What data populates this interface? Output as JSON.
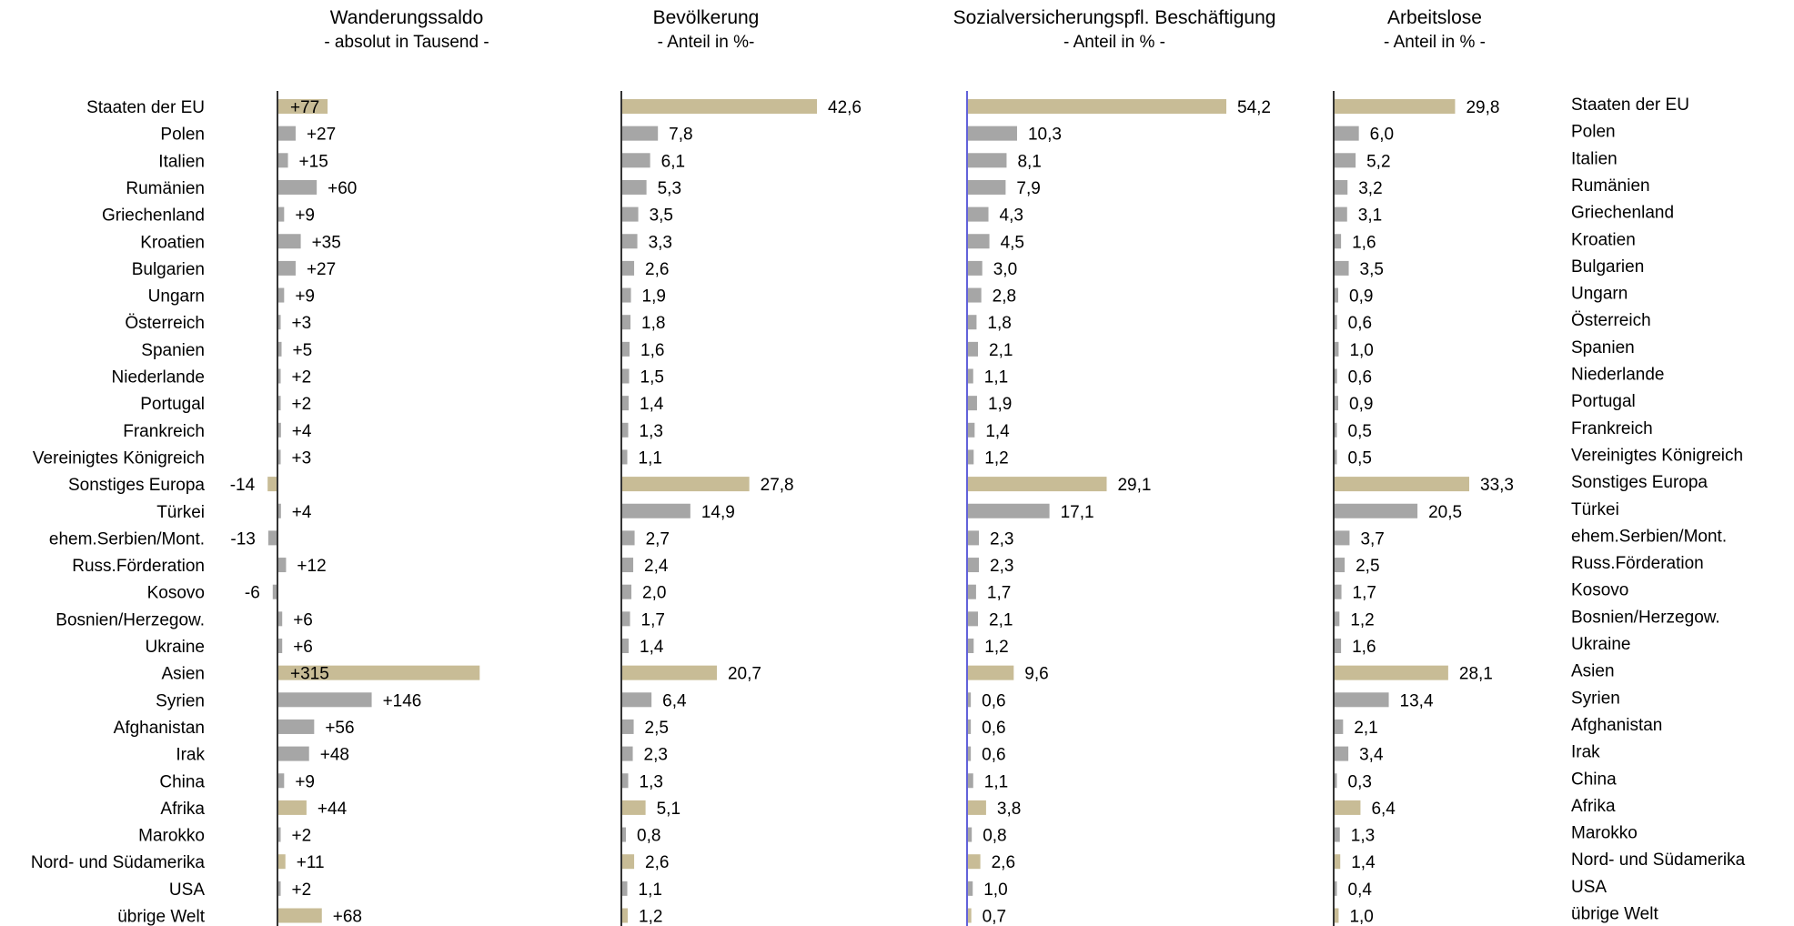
{
  "colors": {
    "aggregate": "#c8bc96",
    "country": "#a6a6a6",
    "axis_black": "#000000",
    "axis_blue": "#3a3ad0"
  },
  "chart_data": {
    "type": "bar",
    "orientation": "horizontal",
    "categories": [
      "Staaten der EU",
      "Polen",
      "Italien",
      "Rumänien",
      "Griechenland",
      "Kroatien",
      "Bulgarien",
      "Ungarn",
      "Österreich",
      "Spanien",
      "Niederlande",
      "Portugal",
      "Frankreich",
      "Vereinigtes Königreich",
      "Sonstiges Europa",
      "Türkei",
      "ehem.Serbien/Mont.",
      "Russ.Förderation",
      "Kosovo",
      "Bosnien/Herzegow.",
      "Ukraine",
      "Asien",
      "Syrien",
      "Afghanistan",
      "Irak",
      "China",
      "Afrika",
      "Marokko",
      "Nord- und Südamerika",
      "USA",
      "übrige Welt"
    ],
    "aggregate": [
      true,
      false,
      false,
      false,
      false,
      false,
      false,
      false,
      false,
      false,
      false,
      false,
      false,
      false,
      true,
      false,
      false,
      false,
      false,
      false,
      false,
      true,
      false,
      false,
      false,
      false,
      true,
      false,
      true,
      false,
      true
    ],
    "panels": [
      {
        "title": "Wanderungssaldo",
        "subtitle": "- absolut in Tausend -",
        "xlim": [
          -14,
          315
        ],
        "values": [
          77,
          27,
          15,
          60,
          9,
          35,
          27,
          9,
          3,
          5,
          2,
          2,
          4,
          3,
          -14,
          4,
          -13,
          12,
          -6,
          6,
          6,
          315,
          146,
          56,
          48,
          9,
          44,
          2,
          11,
          2,
          68
        ],
        "labels": [
          "+77",
          "+27",
          "+15",
          "+60",
          "+9",
          "+35",
          "+27",
          "+9",
          "+3",
          "+5",
          "+2",
          "+2",
          "+4",
          "+3",
          "-14",
          "+4",
          "-13",
          "+12",
          "-6",
          "+6",
          "+6",
          "+315",
          "+146",
          "+56",
          "+48",
          "+9",
          "+44",
          "+2",
          "+11",
          "+2",
          "+68"
        ]
      },
      {
        "title": "Bevölkerung",
        "subtitle": "- Anteil in %-",
        "xlim": [
          0,
          42.6
        ],
        "values": [
          42.6,
          7.8,
          6.1,
          5.3,
          3.5,
          3.3,
          2.6,
          1.9,
          1.8,
          1.6,
          1.5,
          1.4,
          1.3,
          1.1,
          27.8,
          14.9,
          2.7,
          2.4,
          2.0,
          1.7,
          1.4,
          20.7,
          6.4,
          2.5,
          2.3,
          1.3,
          5.1,
          0.8,
          2.6,
          1.1,
          1.2
        ],
        "labels": [
          "42,6",
          "7,8",
          "6,1",
          "5,3",
          "3,5",
          "3,3",
          "2,6",
          "1,9",
          "1,8",
          "1,6",
          "1,5",
          "1,4",
          "1,3",
          "1,1",
          "27,8",
          "14,9",
          "2,7",
          "2,4",
          "2,0",
          "1,7",
          "1,4",
          "20,7",
          "6,4",
          "2,5",
          "2,3",
          "1,3",
          "5,1",
          "0,8",
          "2,6",
          "1,1",
          "1,2"
        ]
      },
      {
        "title": "Sozialversicherungspfl.  Beschäftigung",
        "subtitle": "- Anteil in % -",
        "xlim": [
          0,
          54.2
        ],
        "values": [
          54.2,
          10.3,
          8.1,
          7.9,
          4.3,
          4.5,
          3.0,
          2.8,
          1.8,
          2.1,
          1.1,
          1.9,
          1.4,
          1.2,
          29.1,
          17.1,
          2.3,
          2.3,
          1.7,
          2.1,
          1.2,
          9.6,
          0.6,
          0.6,
          0.6,
          1.1,
          3.8,
          0.8,
          2.6,
          1.0,
          0.7
        ],
        "labels": [
          "54,2",
          "10,3",
          "8,1",
          "7,9",
          "4,3",
          "4,5",
          "3,0",
          "2,8",
          "1,8",
          "2,1",
          "1,1",
          "1,9",
          "1,4",
          "1,2",
          "29,1",
          "17,1",
          "2,3",
          "2,3",
          "1,7",
          "2,1",
          "1,2",
          "9,6",
          "0,6",
          "0,6",
          "0,6",
          "1,1",
          "3,8",
          "0,8",
          "2,6",
          "1,0",
          "0,7"
        ]
      },
      {
        "title": "Arbeitslose",
        "subtitle": "- Anteil in % -",
        "xlim": [
          0,
          33.3
        ],
        "values": [
          29.8,
          6.0,
          5.2,
          3.2,
          3.1,
          1.6,
          3.5,
          0.9,
          0.6,
          1.0,
          0.6,
          0.9,
          0.5,
          0.5,
          33.3,
          20.5,
          3.7,
          2.5,
          1.7,
          1.2,
          1.6,
          28.1,
          13.4,
          2.1,
          3.4,
          0.3,
          6.4,
          1.3,
          1.4,
          0.4,
          1.0
        ],
        "labels": [
          "29,8",
          "6,0",
          "5,2",
          "3,2",
          "3,1",
          "1,6",
          "3,5",
          "0,9",
          "0,6",
          "1,0",
          "0,6",
          "0,9",
          "0,5",
          "0,5",
          "33,3",
          "20,5",
          "3,7",
          "2,5",
          "1,7",
          "1,2",
          "1,6",
          "28,1",
          "13,4",
          "2,1",
          "3,4",
          "0,3",
          "6,4",
          "1,3",
          "1,4",
          "0,4",
          "1,0"
        ]
      }
    ]
  }
}
